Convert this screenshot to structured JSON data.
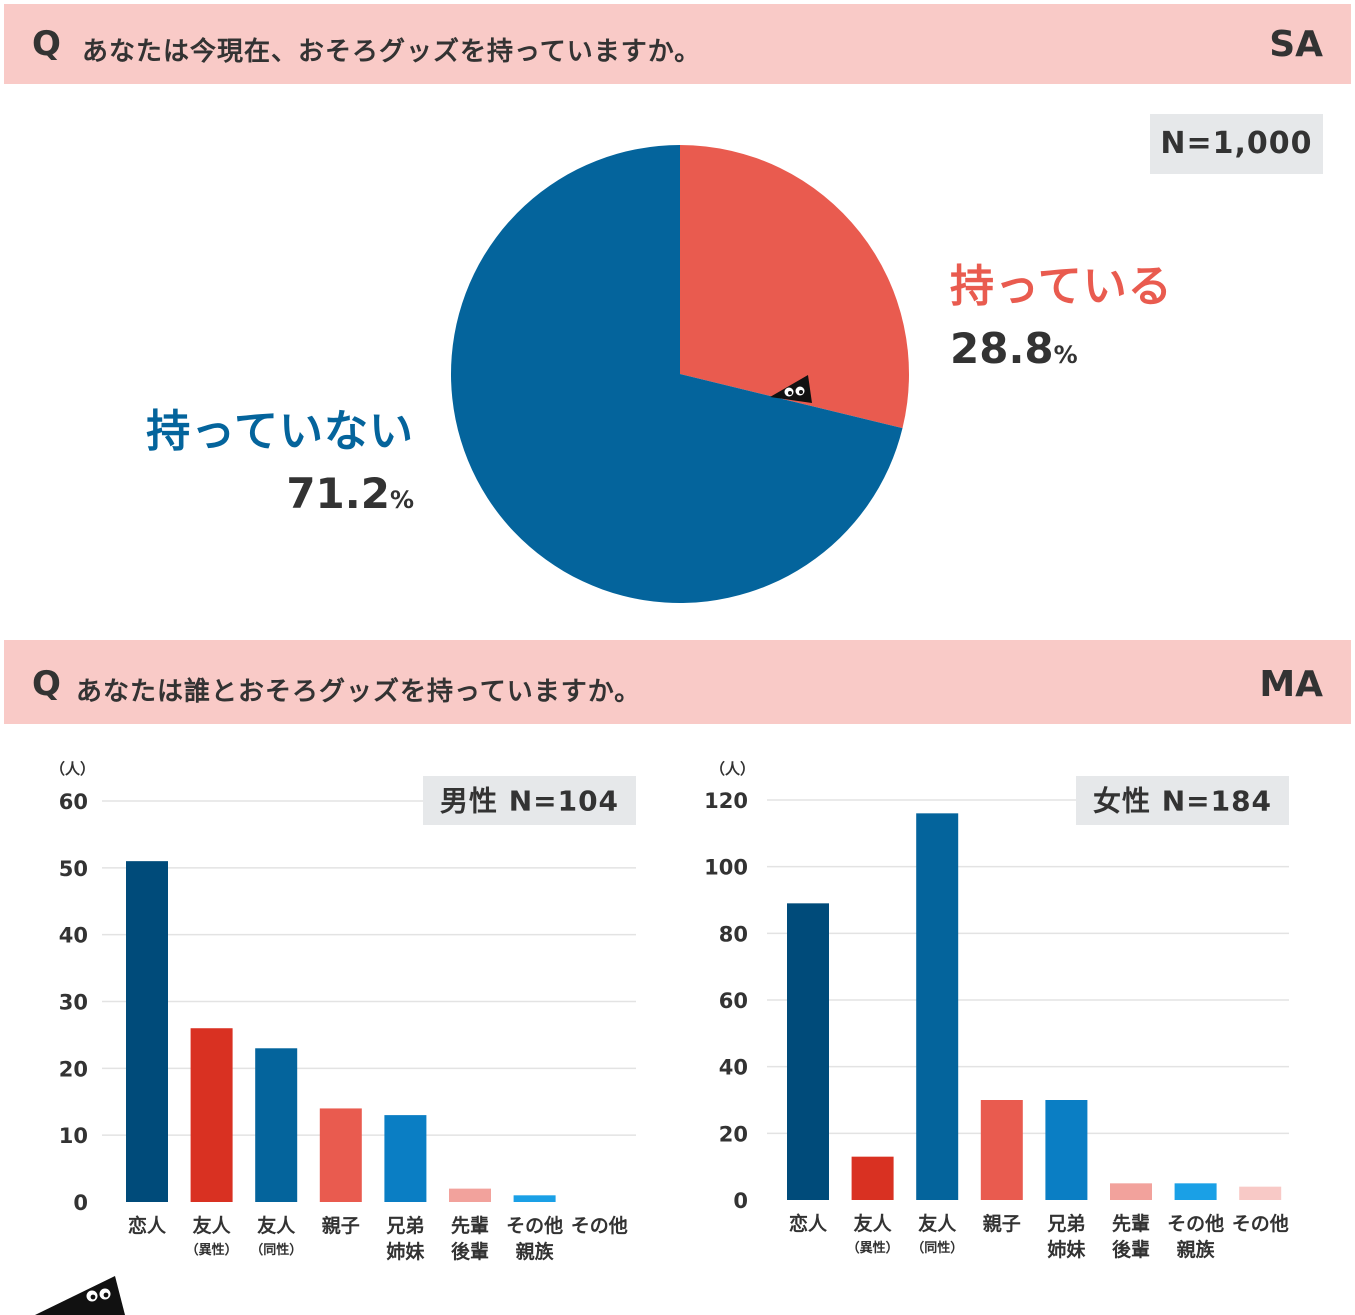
{
  "q1": {
    "q_mark": "Q",
    "text": "あなたは今現在、おそろグッズを持っていますか。",
    "type": "SA",
    "n_label": "N=1,000"
  },
  "q2": {
    "q_mark": "Q",
    "text": "あなたは誰とおそろグッズを持っていますか。",
    "type": "MA"
  },
  "colors": {
    "header_bg": "#f9cac7",
    "have": "#e95b4f",
    "not_have": "#04649c"
  },
  "chart_data": [
    {
      "type": "pie",
      "slices": [
        {
          "label": "持っている",
          "value": 28.8,
          "unit": "%",
          "color": "#e95b4f"
        },
        {
          "label": "持っていない",
          "value": 71.2,
          "unit": "%",
          "color": "#04649c"
        }
      ]
    },
    {
      "type": "bar",
      "title": "男性 N=104",
      "ylabel": "（人）",
      "ylim": [
        0,
        60
      ],
      "yticks": [
        0,
        10,
        20,
        30,
        40,
        50,
        60
      ],
      "categories": [
        {
          "line1": "恋人",
          "line2": ""
        },
        {
          "line1": "友人",
          "line2": "（異性）"
        },
        {
          "line1": "友人",
          "line2": "（同性）"
        },
        {
          "line1": "親子",
          "line2": ""
        },
        {
          "line1": "兄弟",
          "line2": "姉妹"
        },
        {
          "line1": "先輩",
          "line2": "後輩"
        },
        {
          "line1": "その他",
          "line2": "親族"
        },
        {
          "line1": "その他",
          "line2": ""
        }
      ],
      "values": [
        51,
        26,
        23,
        14,
        13,
        2,
        1,
        0
      ],
      "colors": [
        "#004b7a",
        "#d93122",
        "#04649c",
        "#e95b4f",
        "#0a7ec4",
        "#f2a29c",
        "#1aa0e6",
        "#f8c9c6"
      ],
      "grid": true
    },
    {
      "type": "bar",
      "title": "女性 N=184",
      "ylabel": "（人）",
      "ylim": [
        0,
        120
      ],
      "yticks": [
        0,
        20,
        40,
        60,
        80,
        100,
        120
      ],
      "categories": [
        {
          "line1": "恋人",
          "line2": ""
        },
        {
          "line1": "友人",
          "line2": "（異性）"
        },
        {
          "line1": "友人",
          "line2": "（同性）"
        },
        {
          "line1": "親子",
          "line2": ""
        },
        {
          "line1": "兄弟",
          "line2": "姉妹"
        },
        {
          "line1": "先輩",
          "line2": "後輩"
        },
        {
          "line1": "その他",
          "line2": "親族"
        },
        {
          "line1": "その他",
          "line2": ""
        }
      ],
      "values": [
        89,
        13,
        116,
        30,
        30,
        5,
        5,
        4
      ],
      "colors": [
        "#004b7a",
        "#d93122",
        "#04649c",
        "#e95b4f",
        "#0a7ec4",
        "#f2a29c",
        "#1aa0e6",
        "#f8c9c6"
      ],
      "grid": true
    }
  ]
}
